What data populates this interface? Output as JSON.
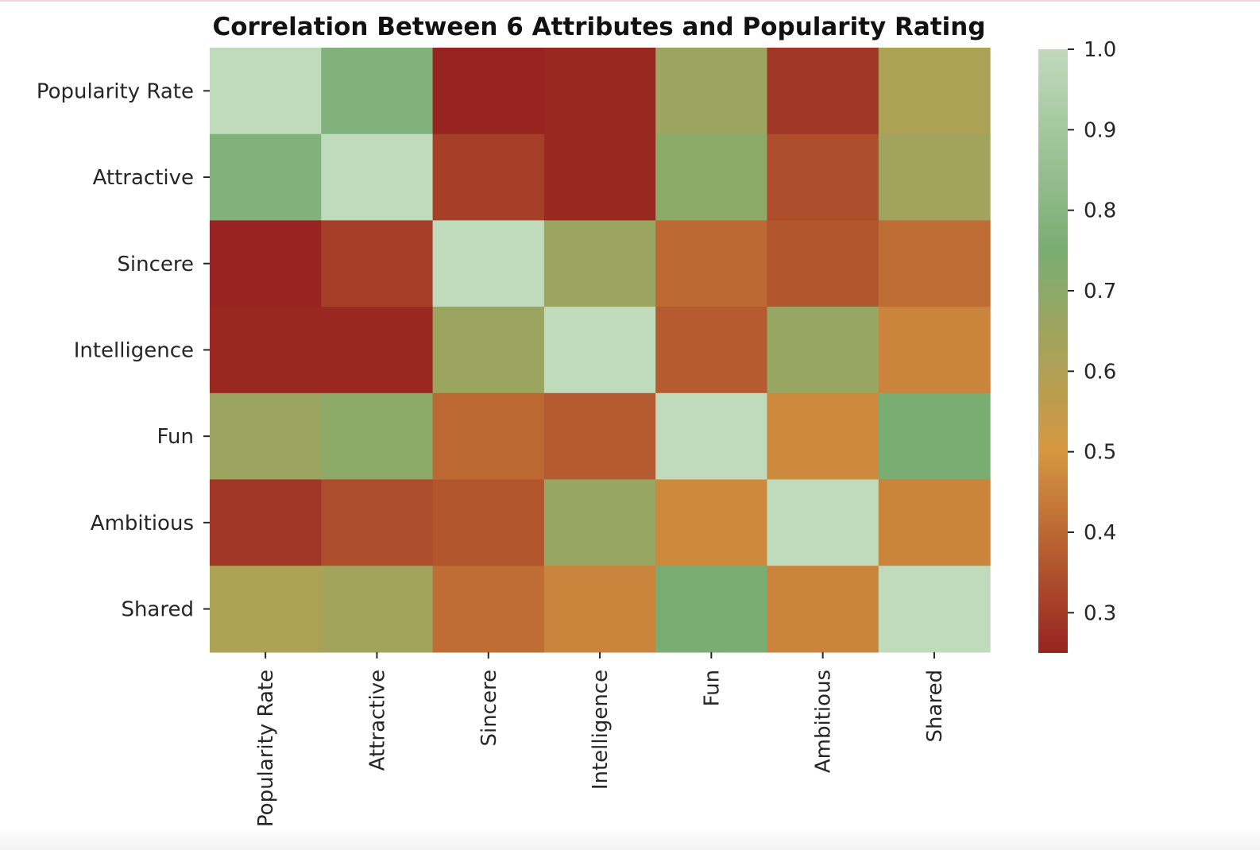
{
  "chart_data": {
    "type": "heatmap",
    "title": "Correlation Between 6 Attributes and Popularity Rating",
    "xlabel": "",
    "ylabel": "",
    "rows": [
      "Popularity Rate",
      "Attractive",
      "Sincere",
      "Intelligence",
      "Fun",
      "Ambitious",
      "Shared"
    ],
    "columns": [
      "Popularity Rate",
      "Attractive",
      "Sincere",
      "Intelligence",
      "Fun",
      "Ambitious",
      "Shared"
    ],
    "values": [
      [
        1.0,
        0.78,
        0.25,
        0.26,
        0.66,
        0.29,
        0.61
      ],
      [
        0.78,
        1.0,
        0.31,
        0.26,
        0.7,
        0.34,
        0.64
      ],
      [
        0.25,
        0.31,
        1.0,
        0.66,
        0.4,
        0.36,
        0.41
      ],
      [
        0.26,
        0.26,
        0.66,
        1.0,
        0.37,
        0.67,
        0.46
      ],
      [
        0.66,
        0.7,
        0.4,
        0.37,
        1.0,
        0.47,
        0.75
      ],
      [
        0.29,
        0.34,
        0.36,
        0.67,
        0.47,
        1.0,
        0.46
      ],
      [
        0.61,
        0.64,
        0.41,
        0.46,
        0.75,
        0.46,
        1.0
      ]
    ],
    "colorbar": {
      "vmin": 0.25,
      "vmax": 1.0,
      "ticks": [
        0.3,
        0.4,
        0.5,
        0.6,
        0.7,
        0.8,
        0.9,
        1.0
      ],
      "tick_labels": [
        "0.3",
        "0.4",
        "0.5",
        "0.6",
        "0.7",
        "0.8",
        "0.9",
        "1.0"
      ],
      "colormap": [
        "#962320",
        "#d59740",
        "#7aad72",
        "#c0dabc"
      ]
    },
    "grid": false,
    "legend": "colorbar-right"
  }
}
